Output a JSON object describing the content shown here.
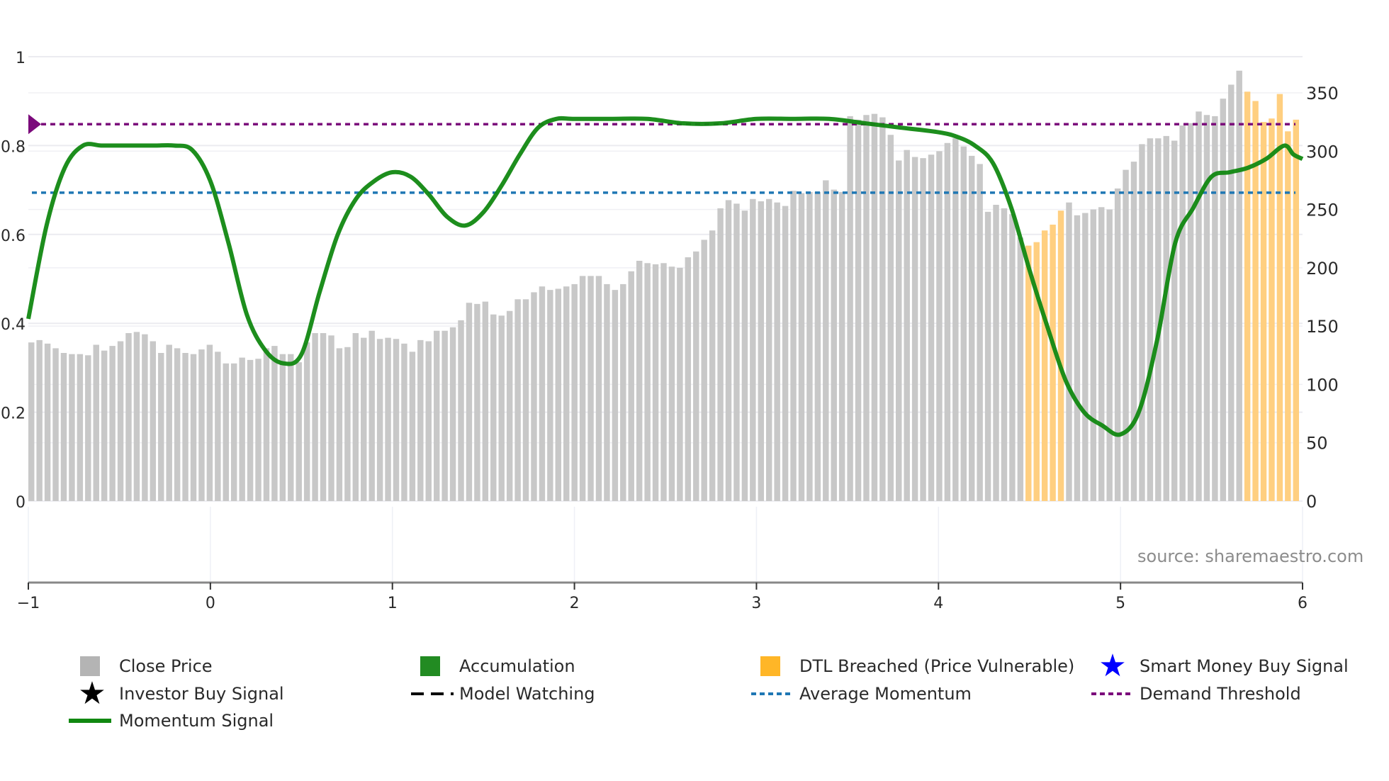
{
  "chart_data": {
    "type": "bar",
    "title": "",
    "xlabel": "",
    "ylabel_left": "",
    "ylabel_right": "",
    "source": "source: sharemaestro.com",
    "x_axis": {
      "range": [
        -1,
        6
      ],
      "ticks": [
        "-1",
        "0",
        "1",
        "2",
        "3",
        "4",
        "5",
        "6"
      ]
    },
    "y_left": {
      "range": [
        0,
        1
      ],
      "ticks": [
        "0",
        "0.2",
        "0.4",
        "0.6",
        "0.8",
        "1"
      ]
    },
    "y_right": {
      "range": [
        0,
        350
      ],
      "ticks": [
        "0",
        "50",
        "100",
        "150",
        "200",
        "250",
        "300",
        "350"
      ]
    },
    "colors": {
      "close_price": "#c8c8c8",
      "accumulation": "#228b22",
      "dtl_breached": "#ffb627",
      "smart_money": "#0000ff",
      "investor_buy": "#000000",
      "model_watching": "#000000",
      "average_momentum": "#1f77b4",
      "demand_threshold": "#7b0a7b",
      "momentum_signal": "#118811"
    },
    "bars": {
      "name": "Close Price (right axis)",
      "values": [
        136,
        138,
        135,
        131,
        127,
        126,
        126,
        125,
        134,
        129,
        133,
        137,
        144,
        145,
        143,
        137,
        127,
        134,
        131,
        127,
        126,
        130,
        134,
        128,
        118,
        118,
        123,
        121,
        122,
        131,
        133,
        126,
        126,
        119,
        136,
        144,
        144,
        142,
        131,
        132,
        144,
        140,
        146,
        139,
        140,
        139,
        135,
        128,
        138,
        137,
        146,
        146,
        149,
        155,
        170,
        169,
        171,
        160,
        159,
        163,
        173,
        173,
        179,
        184,
        181,
        182,
        184,
        186,
        193,
        193,
        193,
        186,
        181,
        186,
        197,
        206,
        204,
        203,
        204,
        201,
        200,
        209,
        214,
        224,
        232,
        251,
        258,
        255,
        249,
        259,
        257,
        259,
        256,
        253,
        266,
        264,
        265,
        265,
        275,
        267,
        265,
        330,
        327,
        331,
        332,
        329,
        314,
        292,
        301,
        295,
        294,
        297,
        300,
        307,
        311,
        304,
        296,
        289,
        248,
        254,
        251,
        246,
        226,
        219,
        222,
        232,
        237,
        249,
        256,
        245,
        247,
        250,
        252,
        250,
        268,
        284,
        291,
        306,
        311,
        311,
        313,
        309,
        322,
        324,
        334,
        331,
        330,
        345,
        357,
        369,
        351,
        343,
        325,
        328,
        349,
        317,
        327
      ],
      "orange_indices": [
        123,
        124,
        125,
        126,
        127,
        150,
        151,
        152,
        153,
        154,
        155,
        156,
        157,
        158,
        160
      ]
    },
    "series": [
      {
        "name": "Momentum Signal",
        "axis": "left",
        "x": [
          -1.0,
          -0.9,
          -0.8,
          -0.7,
          -0.6,
          -0.5,
          -0.4,
          -0.3,
          -0.2,
          -0.1,
          0.0,
          0.1,
          0.2,
          0.3,
          0.4,
          0.5,
          0.6,
          0.7,
          0.8,
          0.9,
          1.0,
          1.1,
          1.2,
          1.3,
          1.4,
          1.5,
          1.6,
          1.7,
          1.8,
          1.9,
          2.0,
          2.2,
          2.4,
          2.6,
          2.8,
          3.0,
          3.2,
          3.4,
          3.6,
          3.8,
          4.0,
          4.1,
          4.2,
          4.3,
          4.4,
          4.5,
          4.6,
          4.7,
          4.8,
          4.9,
          5.0,
          5.1,
          5.2,
          5.3,
          5.4,
          5.5,
          5.6,
          5.7,
          5.8,
          5.9,
          5.95,
          6.0
        ],
        "values": [
          0.41,
          0.62,
          0.75,
          0.8,
          0.8,
          0.8,
          0.8,
          0.8,
          0.8,
          0.79,
          0.72,
          0.58,
          0.42,
          0.34,
          0.31,
          0.33,
          0.47,
          0.6,
          0.68,
          0.72,
          0.74,
          0.73,
          0.69,
          0.64,
          0.62,
          0.65,
          0.71,
          0.78,
          0.84,
          0.86,
          0.86,
          0.86,
          0.86,
          0.85,
          0.85,
          0.86,
          0.86,
          0.86,
          0.85,
          0.84,
          0.83,
          0.82,
          0.8,
          0.76,
          0.66,
          0.52,
          0.39,
          0.27,
          0.2,
          0.17,
          0.15,
          0.2,
          0.36,
          0.58,
          0.66,
          0.73,
          0.74,
          0.75,
          0.77,
          0.8,
          0.78,
          0.77
        ]
      },
      {
        "name": "Average Momentum",
        "axis": "left",
        "value": 0.694
      },
      {
        "name": "Demand Threshold",
        "axis": "left",
        "value": 0.848
      }
    ],
    "legend": {
      "position": "bottom",
      "entries": [
        {
          "label": "Close Price",
          "symbol": "square",
          "color": "#b4b4b4"
        },
        {
          "label": "Accumulation",
          "symbol": "square",
          "color": "#228b22"
        },
        {
          "label": "DTL Breached (Price Vulnerable)",
          "symbol": "square",
          "color": "#ffb627"
        },
        {
          "label": "Smart Money Buy Signal",
          "symbol": "star",
          "color": "#0000ff"
        },
        {
          "label": "Investor Buy Signal",
          "symbol": "star",
          "color": "#000000"
        },
        {
          "label": "Model Watching",
          "symbol": "dash",
          "color": "#000000"
        },
        {
          "label": "Average Momentum",
          "symbol": "dot",
          "color": "#1f77b4"
        },
        {
          "label": "Demand Threshold",
          "symbol": "dot",
          "color": "#7b0a7b"
        },
        {
          "label": "Momentum Signal",
          "symbol": "line",
          "color": "#118811"
        }
      ]
    },
    "grid": true
  }
}
